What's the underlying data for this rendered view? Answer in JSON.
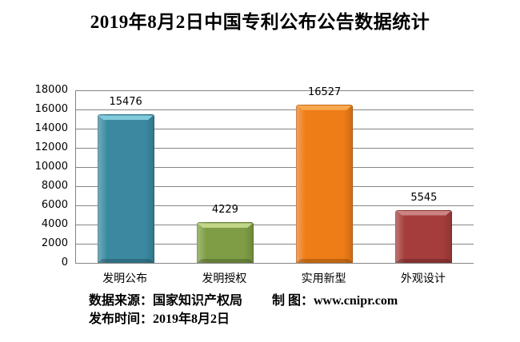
{
  "chart_data": {
    "type": "bar",
    "title": "2019年8月2日中国专利公布公告数据统计",
    "categories": [
      "发明公布",
      "发明授权",
      "实用新型",
      "外观设计"
    ],
    "values": [
      15476,
      4229,
      16527,
      5545
    ],
    "data_labels": [
      "15476",
      "4229",
      "16527",
      "5545"
    ],
    "bar_colors": [
      "#3A89A0",
      "#7E9D45",
      "#EE7D17",
      "#A53D3C"
    ],
    "bar_highlight_colors": [
      "#82CBDC",
      "#C1D687",
      "#F8A94F",
      "#CC8483"
    ],
    "xlabel": "",
    "ylabel": "",
    "ylim": [
      0,
      18000
    ],
    "y_ticks": [
      0,
      2000,
      4000,
      6000,
      8000,
      10000,
      12000,
      14000,
      16000,
      18000
    ],
    "grid": true,
    "legend": "none",
    "gridline_color": "#858585"
  },
  "footer": {
    "source": "数据来源：国家知识产权局",
    "credit": "制 图：www.cnipr.com",
    "publish_date": "发布时间：2019年8月2日"
  }
}
